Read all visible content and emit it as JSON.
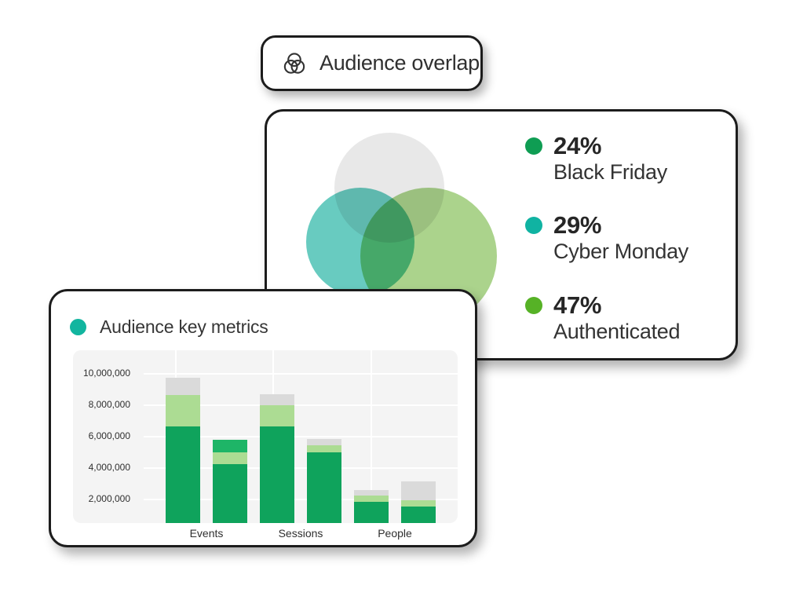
{
  "overlap_badge": {
    "label": "Audience overlap",
    "icon": "venn-diagram-icon"
  },
  "overlap_card": {
    "venn": {
      "circles": [
        {
          "name": "top-circle",
          "color": "#E8E8E8"
        },
        {
          "name": "left-circle",
          "color": "#57C6B9"
        },
        {
          "name": "right-circle",
          "color": "#A2CF80"
        }
      ]
    },
    "legend": [
      {
        "percent": "24%",
        "label": "Black Friday",
        "dot_color": "#0F9D53"
      },
      {
        "percent": "29%",
        "label": "Cyber Monday",
        "dot_color": "#10B3A2"
      },
      {
        "percent": "47%",
        "label": "Authenticated",
        "dot_color": "#56B226"
      }
    ]
  },
  "metrics_card": {
    "title": "Audience key metrics",
    "dot_color": "#12B59F"
  },
  "chart_data": {
    "type": "stacked-bar",
    "title": "Audience key metrics",
    "categories": [
      "Events",
      "Sessions",
      "People"
    ],
    "xlabel": "",
    "ylabel": "",
    "ylim": [
      0,
      11500000
    ],
    "grid": true,
    "plot_background": "#F4F4F4",
    "y_ticks": [
      {
        "label": "10,000,000",
        "value": 10000000
      },
      {
        "label": "8,000,000",
        "value": 8000000
      },
      {
        "label": "6,000,000",
        "value": 6000000
      },
      {
        "label": "4,000,000",
        "value": 4000000
      },
      {
        "label": "2,000,000",
        "value": 2000000
      }
    ],
    "segment_colors": {
      "green": "#0FA35C",
      "bright_green": "#1EB567",
      "light_green": "#ACDC93",
      "gray": "#DADADA"
    },
    "bars": [
      {
        "category": "Events",
        "segments": [
          {
            "color": "green",
            "value": 6650000
          },
          {
            "color": "light_green",
            "value": 2000000
          },
          {
            "color": "gray",
            "value": 1100000
          }
        ]
      },
      {
        "category": "Events",
        "segments": [
          {
            "color": "green",
            "value": 4250000
          },
          {
            "color": "light_green",
            "value": 750000
          },
          {
            "color": "bright_green",
            "value": 800000
          }
        ]
      },
      {
        "category": "Sessions",
        "segments": [
          {
            "color": "green",
            "value": 6650000
          },
          {
            "color": "light_green",
            "value": 1350000
          },
          {
            "color": "gray",
            "value": 700000
          }
        ]
      },
      {
        "category": "Sessions",
        "segments": [
          {
            "color": "green",
            "value": 5000000
          },
          {
            "color": "light_green",
            "value": 450000
          },
          {
            "color": "gray",
            "value": 400000
          }
        ]
      },
      {
        "category": "People",
        "segments": [
          {
            "color": "green",
            "value": 1850000
          },
          {
            "color": "light_green",
            "value": 400000
          },
          {
            "color": "gray",
            "value": 350000
          }
        ]
      },
      {
        "category": "People",
        "segments": [
          {
            "color": "green",
            "value": 1550000
          },
          {
            "color": "light_green",
            "value": 400000
          },
          {
            "color": "gray",
            "value": 1200000
          }
        ]
      }
    ]
  }
}
